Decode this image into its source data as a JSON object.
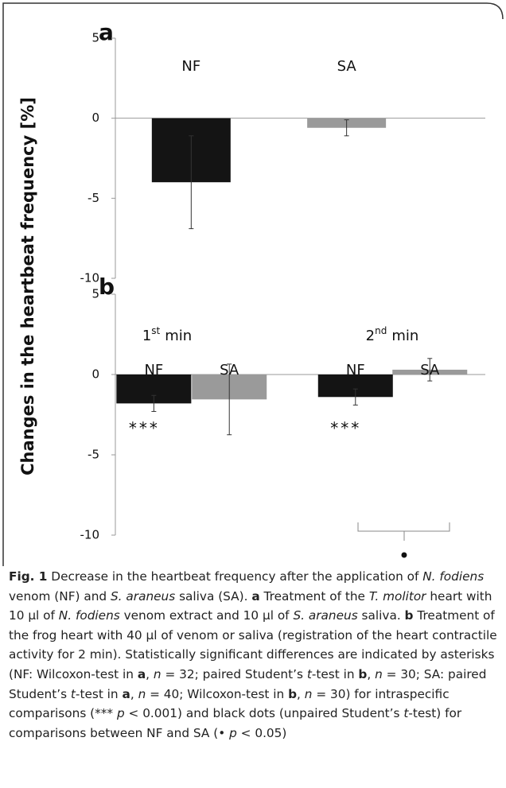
{
  "figure": {
    "ylabel": "Changes in the heartbeat frequency [%]",
    "caption": [
      {
        "text": "Fig. 1",
        "style": "bold"
      },
      {
        "text": " Decrease in the heartbeat frequency after the application of "
      },
      {
        "text": "N. fodiens",
        "style": "italic"
      },
      {
        "text": " venom (NF) and "
      },
      {
        "text": "S. araneus",
        "style": "italic"
      },
      {
        "text": " saliva (SA). "
      },
      {
        "text": "a",
        "style": "bold"
      },
      {
        "text": " Treatment of the "
      },
      {
        "text": "T. molitor",
        "style": "italic"
      },
      {
        "text": " heart with 10 µl of "
      },
      {
        "text": "N. fodiens",
        "style": "italic"
      },
      {
        "text": " venom extract and 10 µl of "
      },
      {
        "text": "S. araneus",
        "style": "italic"
      },
      {
        "text": " saliva. "
      },
      {
        "text": "b",
        "style": "bold"
      },
      {
        "text": " Treatment of the frog heart with 40 µl of venom or saliva (registration of the heart contractile activity for 2 min). Statistically significant differences are indicated by asterisks (NF: Wilcoxon-test in "
      },
      {
        "text": "a",
        "style": "bold"
      },
      {
        "text": ", "
      },
      {
        "text": "n",
        "style": "italic"
      },
      {
        "text": " = 32; paired Student’s "
      },
      {
        "text": "t",
        "style": "italic"
      },
      {
        "text": "-test in "
      },
      {
        "text": "b",
        "style": "bold"
      },
      {
        "text": ", "
      },
      {
        "text": "n",
        "style": "italic"
      },
      {
        "text": " = 30; SA: paired Student’s "
      },
      {
        "text": "t",
        "style": "italic"
      },
      {
        "text": "-test in "
      },
      {
        "text": "a",
        "style": "bold"
      },
      {
        "text": ", "
      },
      {
        "text": "n",
        "style": "italic"
      },
      {
        "text": " = 40; Wilcoxon-test in "
      },
      {
        "text": "b",
        "style": "bold"
      },
      {
        "text": ", "
      },
      {
        "text": "n",
        "style": "italic"
      },
      {
        "text": " = 30) for intraspecific comparisons (*** "
      },
      {
        "text": "p",
        "style": "italic"
      },
      {
        "text": " < 0.001) and black dots (unpaired Student’s "
      },
      {
        "text": "t",
        "style": "italic"
      },
      {
        "text": "-test) for comparisons between NF and SA (• "
      },
      {
        "text": "p",
        "style": "italic"
      },
      {
        "text": " < 0.05)"
      }
    ]
  },
  "chart_data": [
    {
      "type": "bar",
      "panel": "a",
      "categories": [
        "NF",
        "SA"
      ],
      "values": [
        -4.0,
        -0.6
      ],
      "errors": [
        2.9,
        0.5
      ],
      "colors": [
        "#141414",
        "#9a9a9a"
      ],
      "ylim": [
        -10,
        5
      ],
      "yticks": [
        -10,
        -5,
        0,
        5
      ]
    },
    {
      "type": "bar",
      "panel": "b",
      "groups": [
        {
          "number": "1",
          "sup": "st",
          "unit": "min"
        },
        {
          "number": "2",
          "sup": "nd",
          "unit": "min"
        }
      ],
      "categories": [
        "NF",
        "SA",
        "NF",
        "SA"
      ],
      "values": [
        -1.8,
        -1.55,
        -1.4,
        0.3
      ],
      "errors": [
        0.5,
        2.2,
        0.5,
        0.7
      ],
      "colors": [
        "#141414",
        "#9a9a9a",
        "#141414",
        "#9a9a9a"
      ],
      "significance": [
        "***",
        null,
        "***",
        null
      ],
      "comparison": "•",
      "ylim": [
        -10,
        5
      ],
      "yticks": [
        -10,
        -5,
        0,
        5
      ]
    }
  ]
}
